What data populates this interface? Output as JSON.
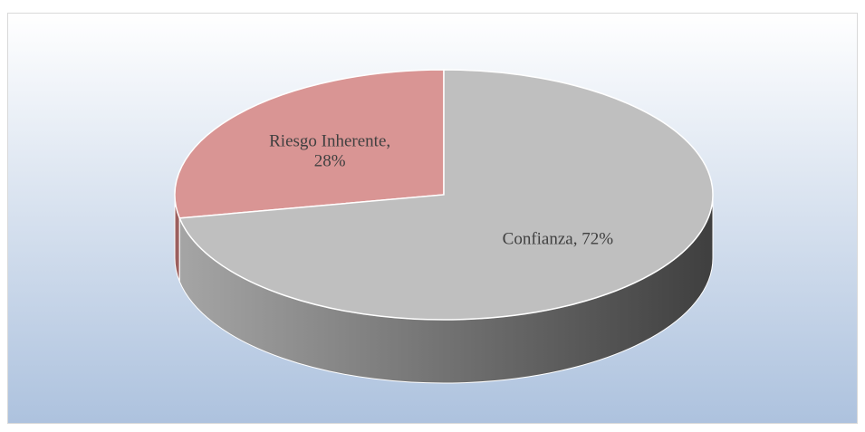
{
  "chart_data": {
    "type": "pie",
    "values": [
      28,
      72
    ],
    "value_labels": [
      "Riesgo Inherente, 28%",
      "Confianza, 72%"
    ],
    "colors": [
      "#d99594",
      "#bfbfbf"
    ]
  }
}
